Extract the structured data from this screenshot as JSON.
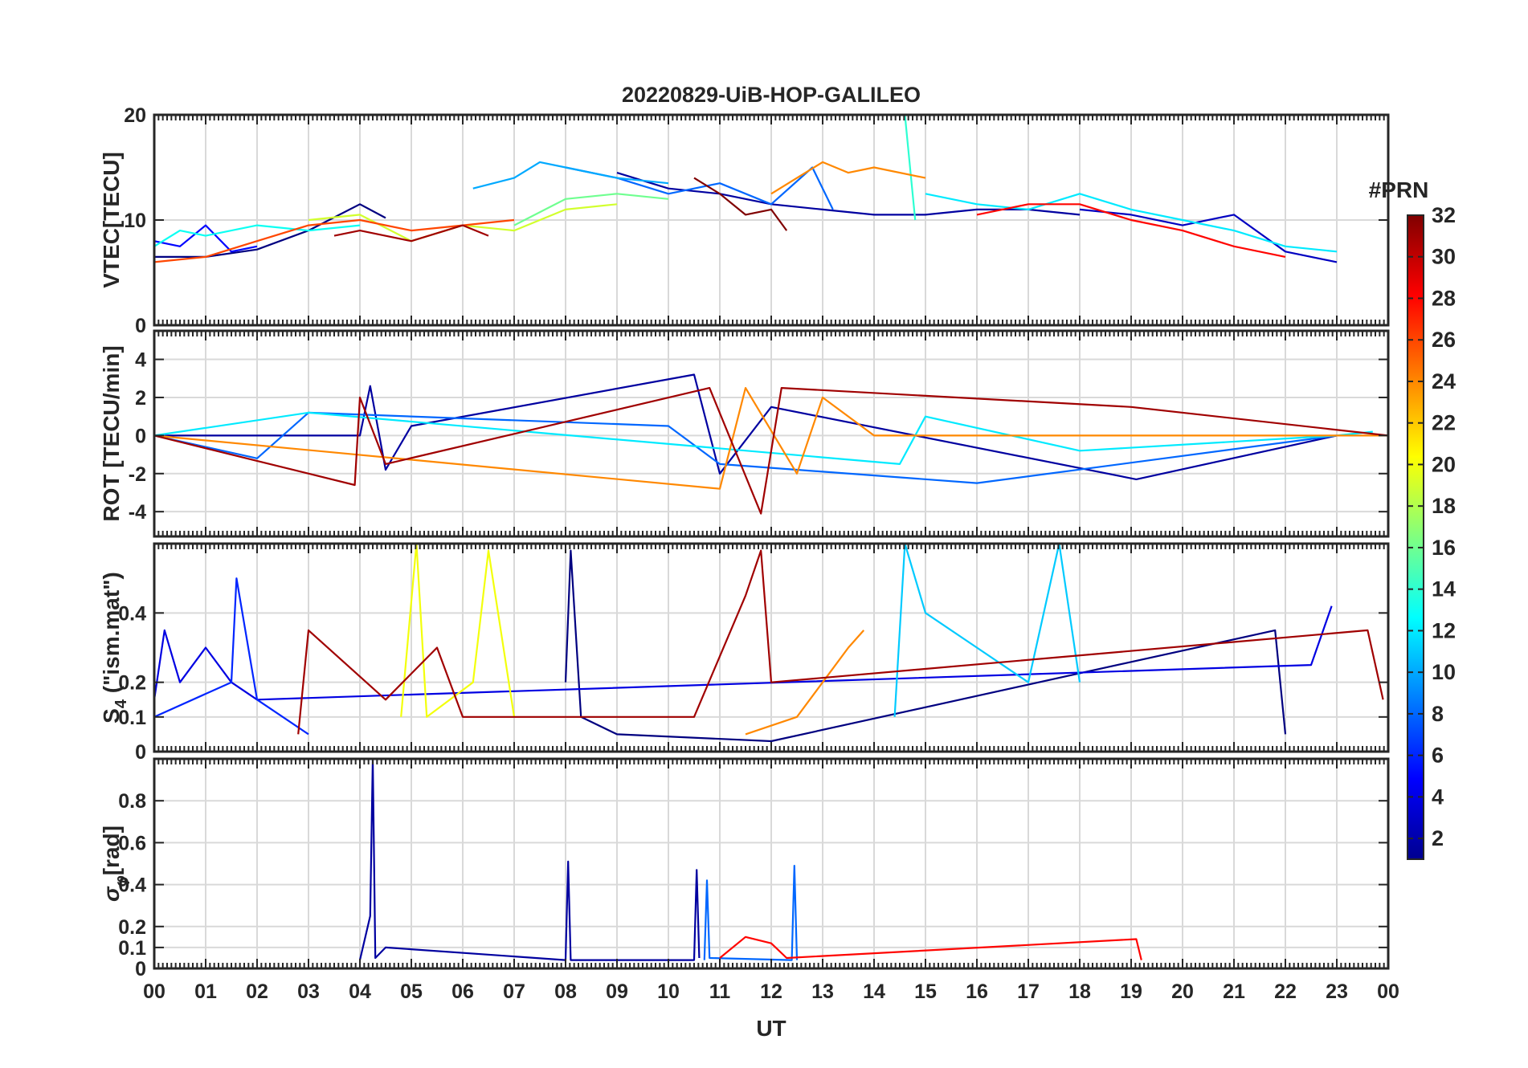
{
  "chart_data": {
    "type": "line",
    "title": "20220829-UiB-HOP-GALILEO",
    "xlabel": "UT",
    "x_range_hours": [
      0,
      24
    ],
    "x_tick_labels": [
      "00",
      "01",
      "02",
      "03",
      "04",
      "05",
      "06",
      "07",
      "08",
      "09",
      "10",
      "11",
      "12",
      "13",
      "14",
      "15",
      "16",
      "17",
      "18",
      "19",
      "20",
      "21",
      "22",
      "23",
      "00"
    ],
    "colorbar": {
      "title": "#PRN",
      "range": [
        1,
        32
      ],
      "tick_labels": [
        "2",
        "4",
        "6",
        "8",
        "10",
        "12",
        "14",
        "16",
        "18",
        "20",
        "22",
        "24",
        "26",
        "28",
        "30",
        "32"
      ]
    },
    "panels": [
      {
        "id": "vtec",
        "ylabel": "VTEC[TECU]",
        "ylim": [
          0,
          20
        ],
        "yticks": [
          0,
          10,
          20
        ],
        "ytick_labels": [
          "0",
          "10",
          "20"
        ],
        "series": [
          {
            "prn": 1,
            "x": [
              0.0,
              1.0,
              2.0,
              3.0,
              4.0,
              4.5
            ],
            "y": [
              6.5,
              6.5,
              7.2,
              9.0,
              11.5,
              10.2
            ]
          },
          {
            "prn": 2,
            "x": [
              9.0,
              10.0,
              11.0,
              12.0,
              13.0,
              14.0,
              15.0,
              16.0,
              17.0,
              18.0
            ],
            "y": [
              14.5,
              13.0,
              12.5,
              11.5,
              11.0,
              10.5,
              10.5,
              11.0,
              11.0,
              10.5
            ]
          },
          {
            "prn": 3,
            "x": [
              18.0,
              19.0,
              20.0,
              21.0,
              22.0,
              23.0
            ],
            "y": [
              11.0,
              10.5,
              9.5,
              10.5,
              7.0,
              6.0
            ]
          },
          {
            "prn": 5,
            "x": [
              0.0,
              0.5,
              1.0,
              1.5,
              2.0
            ],
            "y": [
              8.0,
              7.5,
              9.5,
              7.0,
              7.5
            ]
          },
          {
            "prn": 8,
            "x": [
              8.0,
              9.0,
              10.0,
              11.0,
              12.0,
              12.8,
              13.2
            ],
            "y": [
              15.0,
              14.0,
              12.5,
              13.5,
              11.5,
              15.0,
              11.0
            ]
          },
          {
            "prn": 10,
            "x": [
              6.2,
              7.0,
              7.5,
              8.0,
              9.0,
              10.0
            ],
            "y": [
              13.0,
              14.0,
              15.5,
              15.0,
              14.0,
              13.5
            ]
          },
          {
            "prn": 12,
            "x": [
              15.0,
              16.0,
              17.0,
              18.0,
              19.0,
              20.0,
              21.0,
              22.0,
              23.0
            ],
            "y": [
              12.5,
              11.5,
              11.0,
              12.5,
              11.0,
              10.0,
              9.0,
              7.5,
              7.0
            ]
          },
          {
            "prn": 13,
            "x": [
              0.0,
              0.5,
              1.0,
              2.0,
              3.0,
              4.0
            ],
            "y": [
              7.5,
              9.0,
              8.5,
              9.5,
              9.0,
              9.5
            ]
          },
          {
            "prn": 14,
            "x": [
              14.6,
              14.8
            ],
            "y": [
              20.0,
              10.0
            ]
          },
          {
            "prn": 16,
            "x": [
              7.0,
              8.0,
              9.0,
              10.0
            ],
            "y": [
              9.5,
              12.0,
              12.5,
              12.0
            ]
          },
          {
            "prn": 19,
            "x": [
              3.0,
              4.0,
              5.0,
              6.0,
              7.0,
              8.0,
              9.0
            ],
            "y": [
              10.0,
              10.5,
              8.0,
              9.5,
              9.0,
              11.0,
              11.5
            ]
          },
          {
            "prn": 24,
            "x": [
              12.0,
              13.0,
              13.5,
              14.0,
              15.0
            ],
            "y": [
              12.5,
              15.5,
              14.5,
              15.0,
              14.0
            ]
          },
          {
            "prn": 26,
            "x": [
              0.0,
              1.0,
              2.0,
              3.0,
              4.0,
              5.0,
              6.0,
              7.0
            ],
            "y": [
              6.0,
              6.5,
              8.0,
              9.5,
              10.0,
              9.0,
              9.5,
              10.0
            ]
          },
          {
            "prn": 28,
            "x": [
              16.0,
              17.0,
              18.0,
              19.0,
              20.0,
              21.0,
              22.0
            ],
            "y": [
              10.5,
              11.5,
              11.5,
              10.0,
              9.0,
              7.5,
              6.5
            ]
          },
          {
            "prn": 31,
            "x": [
              3.5,
              4.0,
              5.0,
              6.0,
              6.5
            ],
            "y": [
              8.5,
              9.0,
              8.0,
              9.5,
              8.5
            ]
          },
          {
            "prn": 32,
            "x": [
              10.5,
              11.0,
              11.5,
              12.0,
              12.3
            ],
            "y": [
              14.0,
              12.5,
              10.5,
              11.0,
              9.0
            ]
          }
        ]
      },
      {
        "id": "rot",
        "ylabel": "ROT [TECU/min]",
        "ylim": [
          -5.3,
          5.5
        ],
        "yticks": [
          -4,
          -2,
          0,
          2,
          4
        ],
        "ytick_labels": [
          "-4",
          "-2",
          "0",
          "2",
          "4"
        ],
        "series": [
          {
            "prn": 2,
            "x": [
              0.0,
              4.0,
              4.2,
              4.5,
              5.0,
              10.5,
              11.0,
              12.0,
              19.1,
              23.0
            ],
            "y": [
              0.0,
              0.0,
              2.6,
              -1.8,
              0.5,
              3.2,
              -2.0,
              1.5,
              -2.3,
              0.0
            ]
          },
          {
            "prn": 8,
            "x": [
              0.0,
              2.0,
              3.0,
              10.0,
              11.0,
              16.0,
              23.0
            ],
            "y": [
              0.0,
              -1.2,
              1.2,
              0.5,
              -1.5,
              -2.5,
              0.0
            ]
          },
          {
            "prn": 12,
            "x": [
              0.0,
              3.0,
              14.5,
              15.0,
              18.0,
              23.0,
              23.7
            ],
            "y": [
              0.0,
              1.2,
              -1.5,
              1.0,
              -0.8,
              0.0,
              0.2
            ]
          },
          {
            "prn": 24,
            "x": [
              0.0,
              11.0,
              11.5,
              12.5,
              13.0,
              14.0,
              24.0
            ],
            "y": [
              0.0,
              -2.8,
              2.5,
              -2.0,
              2.0,
              0.0,
              0.0
            ]
          },
          {
            "prn": 31,
            "x": [
              0.0,
              3.9,
              4.0,
              4.5,
              10.8,
              11.8,
              12.2,
              19.0,
              24.0
            ],
            "y": [
              0.0,
              -2.6,
              2.0,
              -1.5,
              2.5,
              -4.1,
              2.5,
              1.5,
              0.0
            ]
          }
        ]
      },
      {
        "id": "s4",
        "ylabel": "S4 (\"ism.mat\")",
        "ylabel_parts": {
          "main": "S",
          "sub": "4",
          "rest": " (\"ism.mat\")"
        },
        "ylim": [
          0,
          0.6
        ],
        "yticks": [
          0,
          0.1,
          0.2,
          0.4
        ],
        "ytick_labels": [
          "0",
          "0.1",
          "0.2",
          "0.4"
        ],
        "series": [
          {
            "prn": 1,
            "x": [
              8.0,
              8.1,
              8.3,
              9.0,
              12.0,
              21.8,
              22.0
            ],
            "y": [
              0.2,
              0.58,
              0.1,
              0.05,
              0.03,
              0.35,
              0.05
            ]
          },
          {
            "prn": 4,
            "x": [
              0.0,
              0.2,
              0.5,
              1.0,
              1.5,
              2.0,
              22.5,
              22.9
            ],
            "y": [
              0.15,
              0.35,
              0.2,
              0.3,
              0.2,
              0.15,
              0.25,
              0.42
            ]
          },
          {
            "prn": 6,
            "x": [
              0.0,
              1.5,
              1.6,
              2.0,
              3.0
            ],
            "y": [
              0.1,
              0.2,
              0.5,
              0.15,
              0.05
            ]
          },
          {
            "prn": 11,
            "x": [
              14.4,
              14.6,
              15.0,
              16.0,
              17.0,
              17.6,
              18.0
            ],
            "y": [
              0.1,
              0.6,
              0.4,
              0.3,
              0.2,
              0.6,
              0.2
            ]
          },
          {
            "prn": 20,
            "x": [
              4.8,
              5.1,
              5.3,
              6.2,
              6.5,
              7.0
            ],
            "y": [
              0.1,
              0.6,
              0.1,
              0.2,
              0.58,
              0.1
            ]
          },
          {
            "prn": 24,
            "x": [
              11.5,
              12.5,
              13.0,
              13.5,
              13.8
            ],
            "y": [
              0.05,
              0.1,
              0.2,
              0.3,
              0.35
            ]
          },
          {
            "prn": 31,
            "x": [
              2.8,
              3.0,
              4.5,
              5.5,
              6.0,
              10.5,
              11.5,
              11.8,
              12.0,
              23.6,
              23.9
            ],
            "y": [
              0.05,
              0.35,
              0.15,
              0.3,
              0.1,
              0.1,
              0.45,
              0.58,
              0.2,
              0.35,
              0.15
            ]
          }
        ]
      },
      {
        "id": "sigma_phi",
        "ylabel": "σφ[rad]",
        "ylabel_parts": {
          "main": "σ",
          "sub": "φ",
          "rest": "[rad]"
        },
        "ylim": [
          0,
          1.0
        ],
        "yticks": [
          0,
          0.1,
          0.2,
          0.4,
          0.6,
          0.8
        ],
        "ytick_labels": [
          "0",
          "0.1",
          "0.2",
          "0.4",
          "0.6",
          "0.8"
        ],
        "series": [
          {
            "prn": 2,
            "x": [
              4.0,
              4.2,
              4.25,
              4.3,
              4.5,
              8.0,
              8.05,
              8.1,
              10.5,
              10.55,
              10.6
            ],
            "y": [
              0.04,
              0.25,
              1.0,
              0.05,
              0.1,
              0.04,
              0.51,
              0.04,
              0.04,
              0.47,
              0.05
            ]
          },
          {
            "prn": 8,
            "x": [
              10.7,
              10.75,
              10.8,
              12.4,
              12.45,
              12.5
            ],
            "y": [
              0.04,
              0.42,
              0.05,
              0.04,
              0.49,
              0.04
            ]
          },
          {
            "prn": 28,
            "x": [
              11.0,
              11.5,
              12.0,
              12.3,
              19.1,
              19.2
            ],
            "y": [
              0.05,
              0.15,
              0.12,
              0.05,
              0.14,
              0.04
            ]
          }
        ]
      }
    ]
  }
}
